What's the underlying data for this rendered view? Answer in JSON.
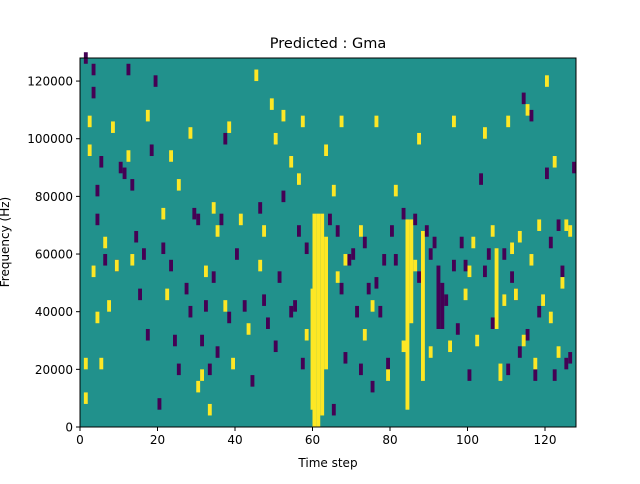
{
  "chart_data": {
    "type": "heatmap",
    "title": "Predicted : Gma",
    "xlabel": "Time step",
    "ylabel": "Frequency (Hz)",
    "xlim": [
      0,
      128
    ],
    "ylim": [
      0,
      128000
    ],
    "x_ticks": [
      0,
      20,
      40,
      60,
      80,
      100,
      120
    ],
    "x_tick_labels": [
      "0",
      "20",
      "40",
      "60",
      "80",
      "100",
      "120"
    ],
    "y_ticks": [
      0,
      20000,
      40000,
      60000,
      80000,
      100000,
      120000
    ],
    "y_tick_labels": [
      "0",
      "20000",
      "40000",
      "60000",
      "80000",
      "100000",
      "120000"
    ],
    "grid": false,
    "legend": "none",
    "colormap": "viridis",
    "colors": {
      "background": "#21918c",
      "low": "#440154",
      "high": "#fde725"
    },
    "background_value": 0,
    "cell": {
      "dx": 1,
      "dy": 4000
    },
    "bands": [
      {
        "x0": 59.5,
        "x1": 60.5,
        "y0": 6000,
        "y1": 48000,
        "value": 1
      },
      {
        "x0": 60,
        "x1": 61,
        "y0": 0,
        "y1": 74000,
        "value": 1
      },
      {
        "x0": 61,
        "x1": 62,
        "y0": 0,
        "y1": 74000,
        "value": 1
      },
      {
        "x0": 62,
        "x1": 63,
        "y0": 4000,
        "y1": 74000,
        "value": 1
      },
      {
        "x0": 63,
        "x1": 64,
        "y0": 20000,
        "y1": 66000,
        "value": 1
      },
      {
        "x0": 84,
        "x1": 85,
        "y0": 6000,
        "y1": 72000,
        "value": 1
      },
      {
        "x0": 85,
        "x1": 86,
        "y0": 36000,
        "y1": 72000,
        "value": 1
      },
      {
        "x0": 88,
        "x1": 89,
        "y0": 16000,
        "y1": 68000,
        "value": 1
      },
      {
        "x0": 92,
        "x1": 93,
        "y0": 34000,
        "y1": 56000,
        "value": -1
      },
      {
        "x0": 93,
        "x1": 94,
        "y0": 34000,
        "y1": 50000,
        "value": -1
      },
      {
        "x0": 107,
        "x1": 108,
        "y0": 34000,
        "y1": 62000,
        "value": 1
      },
      {
        "x0": 108,
        "x1": 109,
        "y0": 16000,
        "y1": 22000,
        "value": 1
      }
    ],
    "cells": [
      [
        1,
        126000,
        -1
      ],
      [
        3,
        122000,
        -1
      ],
      [
        3,
        114000,
        -1
      ],
      [
        4,
        80000,
        -1
      ],
      [
        4,
        70000,
        -1
      ],
      [
        5,
        90000,
        -1
      ],
      [
        6,
        56000,
        -1
      ],
      [
        9,
        54000,
        -1
      ],
      [
        10,
        88000,
        -1
      ],
      [
        11,
        86000,
        -1
      ],
      [
        12,
        122000,
        -1
      ],
      [
        13,
        82000,
        -1
      ],
      [
        14,
        64000,
        -1
      ],
      [
        15,
        44000,
        -1
      ],
      [
        16,
        58000,
        -1
      ],
      [
        17,
        30000,
        -1
      ],
      [
        18,
        94000,
        -1
      ],
      [
        19,
        118000,
        -1
      ],
      [
        20,
        6000,
        -1
      ],
      [
        21,
        60000,
        -1
      ],
      [
        23,
        54000,
        -1
      ],
      [
        24,
        28000,
        -1
      ],
      [
        25,
        18000,
        -1
      ],
      [
        27,
        46000,
        -1
      ],
      [
        28,
        38000,
        -1
      ],
      [
        29,
        72000,
        -1
      ],
      [
        30,
        70000,
        -1
      ],
      [
        31,
        28000,
        -1
      ],
      [
        32,
        40000,
        -1
      ],
      [
        33,
        18000,
        -1
      ],
      [
        34,
        50000,
        -1
      ],
      [
        35,
        24000,
        -1
      ],
      [
        36,
        70000,
        -1
      ],
      [
        37,
        98000,
        -1
      ],
      [
        38,
        36000,
        -1
      ],
      [
        40,
        58000,
        -1
      ],
      [
        42,
        40000,
        -1
      ],
      [
        44,
        14000,
        -1
      ],
      [
        46,
        74000,
        -1
      ],
      [
        47,
        42000,
        -1
      ],
      [
        48,
        34000,
        -1
      ],
      [
        50,
        26000,
        -1
      ],
      [
        51,
        50000,
        -1
      ],
      [
        52,
        78000,
        -1
      ],
      [
        54,
        38000,
        -1
      ],
      [
        55,
        40000,
        -1
      ],
      [
        56,
        66000,
        -1
      ],
      [
        57,
        20000,
        -1
      ],
      [
        58,
        60000,
        -1
      ],
      [
        64,
        70000,
        -1
      ],
      [
        65,
        4000,
        -1
      ],
      [
        66,
        66000,
        -1
      ],
      [
        67,
        46000,
        -1
      ],
      [
        68,
        22000,
        -1
      ],
      [
        69,
        56000,
        -1
      ],
      [
        70,
        58000,
        -1
      ],
      [
        71,
        38000,
        -1
      ],
      [
        72,
        18000,
        -1
      ],
      [
        73,
        62000,
        -1
      ],
      [
        74,
        46000,
        -1
      ],
      [
        75,
        12000,
        -1
      ],
      [
        76,
        48000,
        -1
      ],
      [
        77,
        38000,
        -1
      ],
      [
        78,
        56000,
        -1
      ],
      [
        79,
        20000,
        -1
      ],
      [
        80,
        66000,
        -1
      ],
      [
        81,
        56000,
        -1
      ],
      [
        83,
        72000,
        -1
      ],
      [
        86,
        70000,
        -1
      ],
      [
        87,
        50000,
        -1
      ],
      [
        89,
        66000,
        -1
      ],
      [
        90,
        58000,
        -1
      ],
      [
        91,
        62000,
        -1
      ],
      [
        94,
        42000,
        -1
      ],
      [
        96,
        54000,
        -1
      ],
      [
        97,
        32000,
        -1
      ],
      [
        98,
        62000,
        -1
      ],
      [
        99,
        54000,
        -1
      ],
      [
        100,
        16000,
        -1
      ],
      [
        103,
        84000,
        -1
      ],
      [
        104,
        52000,
        -1
      ],
      [
        105,
        58000,
        -1
      ],
      [
        106,
        34000,
        -1
      ],
      [
        109,
        58000,
        -1
      ],
      [
        110,
        18000,
        -1
      ],
      [
        111,
        50000,
        -1
      ],
      [
        112,
        44000,
        -1
      ],
      [
        113,
        24000,
        -1
      ],
      [
        114,
        112000,
        -1
      ],
      [
        115,
        30000,
        -1
      ],
      [
        116,
        106000,
        -1
      ],
      [
        117,
        16000,
        -1
      ],
      [
        118,
        38000,
        -1
      ],
      [
        120,
        86000,
        -1
      ],
      [
        121,
        62000,
        -1
      ],
      [
        122,
        16000,
        -1
      ],
      [
        123,
        68000,
        -1
      ],
      [
        124,
        52000,
        -1
      ],
      [
        125,
        20000,
        -1
      ],
      [
        126,
        22000,
        -1
      ],
      [
        127,
        88000,
        -1
      ],
      [
        1,
        20000,
        1
      ],
      [
        1,
        8000,
        1
      ],
      [
        2,
        104000,
        1
      ],
      [
        2,
        94000,
        1
      ],
      [
        3,
        52000,
        1
      ],
      [
        4,
        36000,
        1
      ],
      [
        5,
        20000,
        1
      ],
      [
        6,
        62000,
        1
      ],
      [
        7,
        40000,
        1
      ],
      [
        8,
        102000,
        1
      ],
      [
        9,
        54000,
        1
      ],
      [
        12,
        92000,
        1
      ],
      [
        13,
        56000,
        1
      ],
      [
        17,
        106000,
        1
      ],
      [
        21,
        72000,
        1
      ],
      [
        22,
        44000,
        1
      ],
      [
        23,
        92000,
        1
      ],
      [
        25,
        82000,
        1
      ],
      [
        28,
        100000,
        1
      ],
      [
        30,
        12000,
        1
      ],
      [
        31,
        16000,
        1
      ],
      [
        32,
        52000,
        1
      ],
      [
        33,
        4000,
        1
      ],
      [
        34,
        74000,
        1
      ],
      [
        35,
        66000,
        1
      ],
      [
        37,
        40000,
        1
      ],
      [
        38,
        102000,
        1
      ],
      [
        39,
        20000,
        1
      ],
      [
        41,
        70000,
        1
      ],
      [
        43,
        32000,
        1
      ],
      [
        45,
        120000,
        1
      ],
      [
        46,
        54000,
        1
      ],
      [
        47,
        66000,
        1
      ],
      [
        49,
        110000,
        1
      ],
      [
        50,
        98000,
        1
      ],
      [
        52,
        106000,
        1
      ],
      [
        54,
        90000,
        1
      ],
      [
        56,
        84000,
        1
      ],
      [
        57,
        104000,
        1
      ],
      [
        58,
        30000,
        1
      ],
      [
        63,
        94000,
        1
      ],
      [
        65,
        80000,
        1
      ],
      [
        66,
        50000,
        1
      ],
      [
        67,
        104000,
        1
      ],
      [
        68,
        56000,
        1
      ],
      [
        72,
        66000,
        1
      ],
      [
        73,
        30000,
        1
      ],
      [
        75,
        40000,
        1
      ],
      [
        76,
        104000,
        1
      ],
      [
        79,
        16000,
        1
      ],
      [
        81,
        80000,
        1
      ],
      [
        83,
        26000,
        1
      ],
      [
        86,
        54000,
        1
      ],
      [
        87,
        98000,
        1
      ],
      [
        90,
        24000,
        1
      ],
      [
        95,
        26000,
        1
      ],
      [
        96,
        104000,
        1
      ],
      [
        99,
        44000,
        1
      ],
      [
        100,
        52000,
        1
      ],
      [
        101,
        62000,
        1
      ],
      [
        102,
        28000,
        1
      ],
      [
        104,
        100000,
        1
      ],
      [
        106,
        66000,
        1
      ],
      [
        109,
        42000,
        1
      ],
      [
        110,
        104000,
        1
      ],
      [
        111,
        60000,
        1
      ],
      [
        112,
        44000,
        1
      ],
      [
        113,
        64000,
        1
      ],
      [
        114,
        28000,
        1
      ],
      [
        115,
        108000,
        1
      ],
      [
        116,
        56000,
        1
      ],
      [
        117,
        20000,
        1
      ],
      [
        118,
        68000,
        1
      ],
      [
        119,
        42000,
        1
      ],
      [
        120,
        118000,
        1
      ],
      [
        121,
        36000,
        1
      ],
      [
        122,
        90000,
        1
      ],
      [
        123,
        24000,
        1
      ],
      [
        124,
        48000,
        1
      ],
      [
        125,
        68000,
        1
      ],
      [
        126,
        66000,
        1
      ]
    ]
  }
}
